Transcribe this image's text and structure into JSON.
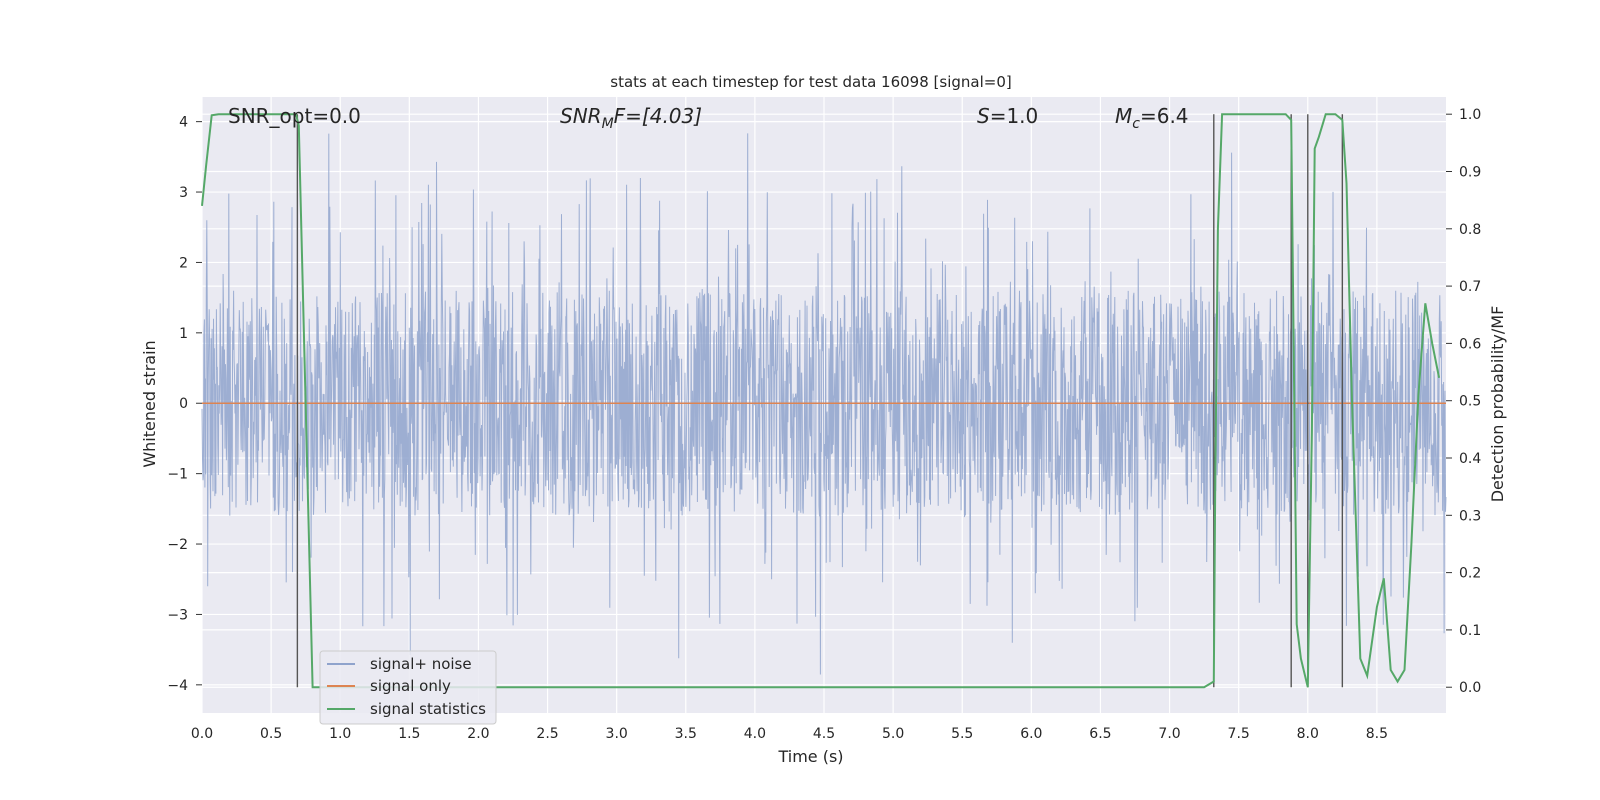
{
  "chart_data": {
    "type": "line",
    "title": "stats at each timestep for test data 16098 [signal=0]",
    "xlabel": "Time (s)",
    "ylabel": "Whitened strain",
    "y2label": "Detection probability/MF",
    "xlim": [
      0,
      9.0
    ],
    "ylim": [
      -4.4,
      4.35
    ],
    "y2lim": [
      -0.045,
      1.03
    ],
    "xticks": [
      "0.0",
      "0.5",
      "1.0",
      "1.5",
      "2.0",
      "2.5",
      "3.0",
      "3.5",
      "4.0",
      "4.5",
      "5.0",
      "5.5",
      "6.0",
      "6.5",
      "7.0",
      "7.5",
      "8.0",
      "8.5"
    ],
    "yticks": [
      "4",
      "3",
      "2",
      "1",
      "0",
      "−1",
      "−2",
      "−3",
      "−4"
    ],
    "y2ticks": [
      "1.0",
      "0.9",
      "0.8",
      "0.7",
      "0.6",
      "0.5",
      "0.4",
      "0.3",
      "0.2",
      "0.1",
      "0.0"
    ],
    "grid": true,
    "legend_position": "lower-left",
    "annotations": {
      "snr_opt": "SNR_opt=0.0",
      "snr_mf_sym": "SNR",
      "snr_mf_sub": "M",
      "snr_mf_rest": "F=[4.03]",
      "s_sym": "S",
      "s_rest": "=1.0",
      "mc_sym": "M",
      "mc_sub": "c",
      "mc_rest": "=6.4"
    },
    "series": [
      {
        "name": "signal+ noise",
        "color": "#8fa3cc",
        "noise_envelope": 1.6,
        "peak_max": 4.0,
        "peak_min": -4.0
      },
      {
        "name": "signal only",
        "color": "#dd8452",
        "values": "constant 0"
      },
      {
        "name": "signal statistics",
        "color": "#55a868",
        "axis": "right",
        "x": [
          0.0,
          0.03,
          0.07,
          0.12,
          0.2,
          0.4,
          0.6,
          0.68,
          0.7,
          0.8,
          7.0,
          7.25,
          7.32,
          7.33,
          7.35,
          7.38,
          7.45,
          7.7,
          7.84,
          7.88,
          7.92,
          7.95,
          8.0,
          8.03,
          8.05,
          8.08,
          8.13,
          8.2,
          8.25,
          8.28,
          8.32,
          8.38,
          8.43,
          8.5,
          8.55,
          8.6,
          8.65,
          8.7,
          8.75,
          8.8,
          8.85,
          8.9,
          8.95
        ],
        "values": [
          0.84,
          0.91,
          0.998,
          1.0,
          1.0,
          1.0,
          1.0,
          1.0,
          0.98,
          0.0,
          0.0,
          0.0,
          0.01,
          0.35,
          0.8,
          1.0,
          1.0,
          1.0,
          1.0,
          0.99,
          0.11,
          0.05,
          0.0,
          0.45,
          0.94,
          0.96,
          1.0,
          1.0,
          0.99,
          0.88,
          0.5,
          0.05,
          0.02,
          0.14,
          0.19,
          0.03,
          0.01,
          0.03,
          0.25,
          0.51,
          0.67,
          0.6,
          0.54
        ]
      },
      {
        "name": "event markers",
        "color": "#555555",
        "x": [
          0.69,
          7.32,
          7.88,
          8.0,
          8.25
        ],
        "values": [
          1.0,
          1.0,
          1.0,
          1.0,
          1.0
        ]
      }
    ]
  }
}
